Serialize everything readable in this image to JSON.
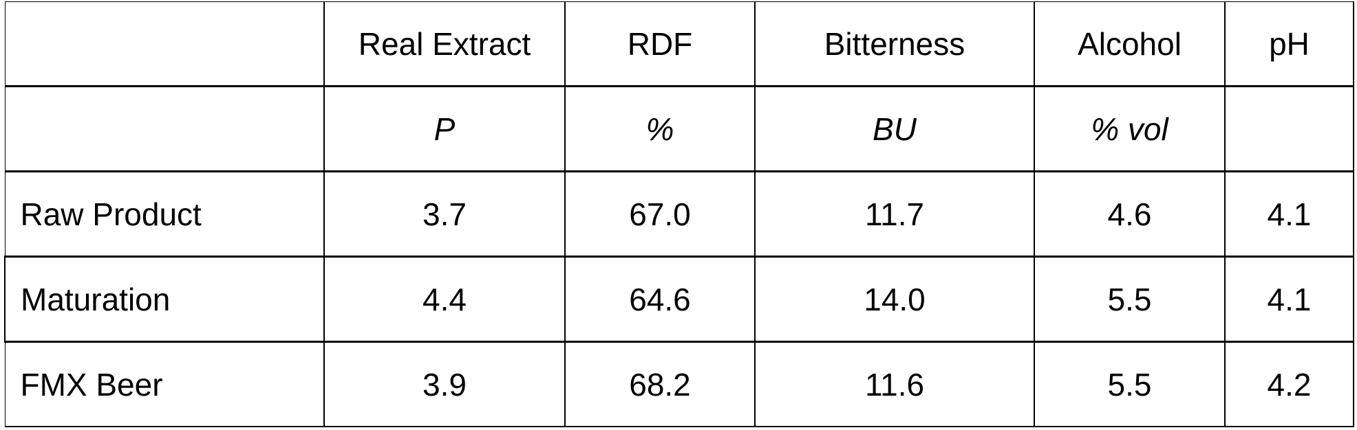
{
  "table": {
    "columns": [
      {
        "label": "",
        "unit": ""
      },
      {
        "label": "Real Extract",
        "unit": "P"
      },
      {
        "label": "RDF",
        "unit": "%"
      },
      {
        "label": "Bitterness",
        "unit": "BU"
      },
      {
        "label": "Alcohol",
        "unit": "% vol"
      },
      {
        "label": "pH",
        "unit": ""
      }
    ],
    "rows": [
      {
        "label": "Raw Product",
        "values": [
          "3.7",
          "67.0",
          "11.7",
          "4.6",
          "4.1"
        ]
      },
      {
        "label": "Maturation",
        "values": [
          "4.4",
          "64.6",
          "14.0",
          "5.5",
          "4.1"
        ]
      },
      {
        "label": "FMX Beer",
        "values": [
          "3.9",
          "68.2",
          "11.6",
          "5.5",
          "4.2"
        ]
      }
    ]
  }
}
